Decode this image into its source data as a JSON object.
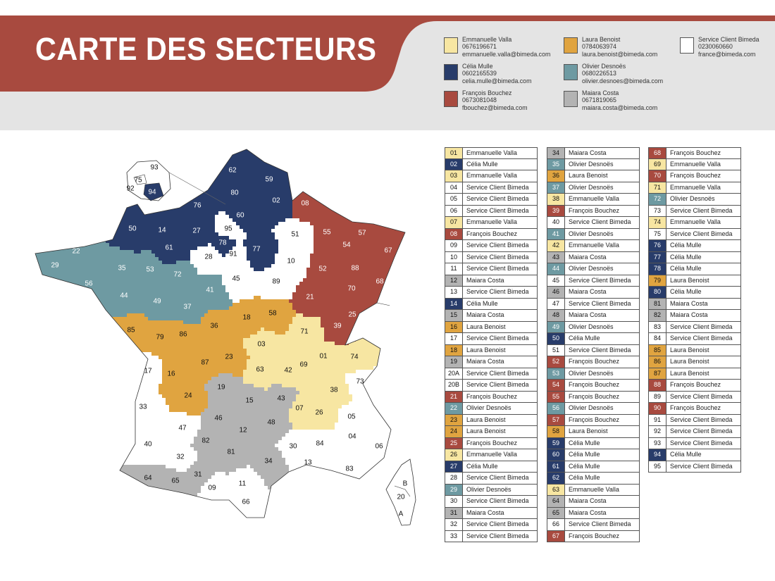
{
  "title": "CARTE DES SECTEURS",
  "colors": {
    "banner": "#a84a3f",
    "header_gray": "#e4e4e4",
    "emmanuelle": "#f7e6a2",
    "celia": "#283c6a",
    "francois": "#a84a3f",
    "laura": "#e0a440",
    "olivier": "#6e9aa2",
    "maiara": "#b3b3b3",
    "service": "#ffffff"
  },
  "contacts": [
    {
      "color_key": "emmanuelle",
      "name": "Emmanuelle Valla",
      "phone": "0676196671",
      "email": "emmanuelle.valla@bimeda.com"
    },
    {
      "color_key": "celia",
      "name": "Célia Mulle",
      "phone": "0602165539",
      "email": "celia.mulle@bimeda.com"
    },
    {
      "color_key": "francois",
      "name": "François Bouchez",
      "phone": "0673081048",
      "email": "fbouchez@bimeda.com"
    },
    {
      "color_key": "laura",
      "name": "Laura Benoist",
      "phone": "0784063974",
      "email": "laura.benoist@bimeda.com"
    },
    {
      "color_key": "olivier",
      "name": "Olivier Desnoës",
      "phone": "0680226513",
      "email": "olivier.desnoes@bimeda.com"
    },
    {
      "color_key": "maiara",
      "name": "Maiara Costa",
      "phone": "0671819065",
      "email": "maiara.costa@bimeda.com"
    },
    {
      "color_key": "service",
      "name": "Service Client Bimeda",
      "phone": "0230060660",
      "email": "france@bimeda.com"
    }
  ],
  "departments": [
    {
      "code": "01",
      "owner": "Emmanuelle Valla",
      "color_key": "emmanuelle"
    },
    {
      "code": "02",
      "owner": "Célia Mulle",
      "color_key": "celia"
    },
    {
      "code": "03",
      "owner": "Emmanuelle Valla",
      "color_key": "emmanuelle"
    },
    {
      "code": "04",
      "owner": "Service Client Bimeda",
      "color_key": "service"
    },
    {
      "code": "05",
      "owner": "Service Client Bimeda",
      "color_key": "service"
    },
    {
      "code": "06",
      "owner": "Service Client Bimeda",
      "color_key": "service"
    },
    {
      "code": "07",
      "owner": "Emmanuelle Valla",
      "color_key": "emmanuelle"
    },
    {
      "code": "08",
      "owner": "François Bouchez",
      "color_key": "francois"
    },
    {
      "code": "09",
      "owner": "Service Client Bimeda",
      "color_key": "service"
    },
    {
      "code": "10",
      "owner": "Service Client Bimeda",
      "color_key": "service"
    },
    {
      "code": "11",
      "owner": "Service Client Bimeda",
      "color_key": "service"
    },
    {
      "code": "12",
      "owner": "Maiara Costa",
      "color_key": "maiara"
    },
    {
      "code": "13",
      "owner": "Service Client Bimeda",
      "color_key": "service"
    },
    {
      "code": "14",
      "owner": "Célia Mulle",
      "color_key": "celia"
    },
    {
      "code": "15",
      "owner": "Maiara Costa",
      "color_key": "maiara"
    },
    {
      "code": "16",
      "owner": "Laura Benoist",
      "color_key": "laura"
    },
    {
      "code": "17",
      "owner": "Service Client Bimeda",
      "color_key": "service"
    },
    {
      "code": "18",
      "owner": "Laura Benoist",
      "color_key": "laura"
    },
    {
      "code": "19",
      "owner": "Maiara Costa",
      "color_key": "maiara"
    },
    {
      "code": "20A",
      "owner": "Service Client Bimeda",
      "color_key": "service"
    },
    {
      "code": "20B",
      "owner": "Service Client Bimeda",
      "color_key": "service"
    },
    {
      "code": "21",
      "owner": "François Bouchez",
      "color_key": "francois"
    },
    {
      "code": "22",
      "owner": "Olivier Desnoës",
      "color_key": "olivier"
    },
    {
      "code": "23",
      "owner": "Laura Benoist",
      "color_key": "laura"
    },
    {
      "code": "24",
      "owner": "Laura Benoist",
      "color_key": "laura"
    },
    {
      "code": "25",
      "owner": "François Bouchez",
      "color_key": "francois"
    },
    {
      "code": "26",
      "owner": "Emmanuelle Valla",
      "color_key": "emmanuelle"
    },
    {
      "code": "27",
      "owner": "Célia Mulle",
      "color_key": "celia"
    },
    {
      "code": "28",
      "owner": "Service Client Bimeda",
      "color_key": "service"
    },
    {
      "code": "29",
      "owner": "Olivier Desnoës",
      "color_key": "olivier"
    },
    {
      "code": "30",
      "owner": "Service Client Bimeda",
      "color_key": "service"
    },
    {
      "code": "31",
      "owner": "Maiara Costa",
      "color_key": "maiara"
    },
    {
      "code": "32",
      "owner": "Service Client Bimeda",
      "color_key": "service"
    },
    {
      "code": "33",
      "owner": "Service Client Bimeda",
      "color_key": "service"
    },
    {
      "code": "34",
      "owner": "Maiara Costa",
      "color_key": "maiara"
    },
    {
      "code": "35",
      "owner": "Olivier Desnoës",
      "color_key": "olivier"
    },
    {
      "code": "36",
      "owner": "Laura Benoist",
      "color_key": "laura"
    },
    {
      "code": "37",
      "owner": "Olivier Desnoës",
      "color_key": "olivier"
    },
    {
      "code": "38",
      "owner": "Emmanuelle Valla",
      "color_key": "emmanuelle"
    },
    {
      "code": "39",
      "owner": "François Bouchez",
      "color_key": "francois"
    },
    {
      "code": "40",
      "owner": "Service Client Bimeda",
      "color_key": "service"
    },
    {
      "code": "41",
      "owner": "Olivier Desnoës",
      "color_key": "olivier"
    },
    {
      "code": "42",
      "owner": "Emmanuelle Valla",
      "color_key": "emmanuelle"
    },
    {
      "code": "43",
      "owner": "Maiara Costa",
      "color_key": "maiara"
    },
    {
      "code": "44",
      "owner": "Olivier Desnoës",
      "color_key": "olivier"
    },
    {
      "code": "45",
      "owner": "Service Client Bimeda",
      "color_key": "service"
    },
    {
      "code": "46",
      "owner": "Maiara Costa",
      "color_key": "maiara"
    },
    {
      "code": "47",
      "owner": "Service Client Bimeda",
      "color_key": "service"
    },
    {
      "code": "48",
      "owner": "Maiara Costa",
      "color_key": "maiara"
    },
    {
      "code": "49",
      "owner": "Olivier Desnoës",
      "color_key": "olivier"
    },
    {
      "code": "50",
      "owner": "Célia Mulle",
      "color_key": "celia"
    },
    {
      "code": "51",
      "owner": "Service Client Bimeda",
      "color_key": "service"
    },
    {
      "code": "52",
      "owner": "François Bouchez",
      "color_key": "francois"
    },
    {
      "code": "53",
      "owner": "Olivier Desnoës",
      "color_key": "olivier"
    },
    {
      "code": "54",
      "owner": "François Bouchez",
      "color_key": "francois"
    },
    {
      "code": "55",
      "owner": "François Bouchez",
      "color_key": "francois"
    },
    {
      "code": "56",
      "owner": "Olivier Desnoës",
      "color_key": "olivier"
    },
    {
      "code": "57",
      "owner": "François Bouchez",
      "color_key": "francois"
    },
    {
      "code": "58",
      "owner": "Laura Benoist",
      "color_key": "laura"
    },
    {
      "code": "59",
      "owner": "Célia Mulle",
      "color_key": "celia"
    },
    {
      "code": "60",
      "owner": "Célia Mulle",
      "color_key": "celia"
    },
    {
      "code": "61",
      "owner": "Célia Mulle",
      "color_key": "celia"
    },
    {
      "code": "62",
      "owner": "Célia Mulle",
      "color_key": "celia"
    },
    {
      "code": "63",
      "owner": "Emmanuelle Valla",
      "color_key": "emmanuelle"
    },
    {
      "code": "64",
      "owner": "Maiara Costa",
      "color_key": "maiara"
    },
    {
      "code": "65",
      "owner": "Maiara Costa",
      "color_key": "maiara"
    },
    {
      "code": "66",
      "owner": "Service Client Bimeda",
      "color_key": "service"
    },
    {
      "code": "67",
      "owner": "François Bouchez",
      "color_key": "francois"
    },
    {
      "code": "68",
      "owner": "François Bouchez",
      "color_key": "francois"
    },
    {
      "code": "69",
      "owner": "Emmanuelle Valla",
      "color_key": "emmanuelle"
    },
    {
      "code": "70",
      "owner": "François Bouchez",
      "color_key": "francois"
    },
    {
      "code": "71",
      "owner": "Emmanuelle Valla",
      "color_key": "emmanuelle"
    },
    {
      "code": "72",
      "owner": "Olivier Desnoës",
      "color_key": "olivier"
    },
    {
      "code": "73",
      "owner": "Service Client Bimeda",
      "color_key": "service"
    },
    {
      "code": "74",
      "owner": "Emmanuelle Valla",
      "color_key": "emmanuelle"
    },
    {
      "code": "75",
      "owner": "Service Client Bimeda",
      "color_key": "service"
    },
    {
      "code": "76",
      "owner": "Célia Mulle",
      "color_key": "celia"
    },
    {
      "code": "77",
      "owner": "Célia Mulle",
      "color_key": "celia"
    },
    {
      "code": "78",
      "owner": "Célia Mulle",
      "color_key": "celia"
    },
    {
      "code": "79",
      "owner": "Laura Benoist",
      "color_key": "laura"
    },
    {
      "code": "80",
      "owner": "Célia Mulle",
      "color_key": "celia"
    },
    {
      "code": "81",
      "owner": "Maiara Costa",
      "color_key": "maiara"
    },
    {
      "code": "82",
      "owner": "Maiara Costa",
      "color_key": "maiara"
    },
    {
      "code": "83",
      "owner": "Service Client Bimeda",
      "color_key": "service"
    },
    {
      "code": "84",
      "owner": "Service Client Bimeda",
      "color_key": "service"
    },
    {
      "code": "85",
      "owner": "Laura Benoist",
      "color_key": "laura"
    },
    {
      "code": "86",
      "owner": "Laura Benoist",
      "color_key": "laura"
    },
    {
      "code": "87",
      "owner": "Laura Benoist",
      "color_key": "laura"
    },
    {
      "code": "88",
      "owner": "François Bouchez",
      "color_key": "francois"
    },
    {
      "code": "89",
      "owner": "Service Client Bimeda",
      "color_key": "service"
    },
    {
      "code": "90",
      "owner": "François Bouchez",
      "color_key": "francois"
    },
    {
      "code": "91",
      "owner": "Service Client Bimeda",
      "color_key": "service"
    },
    {
      "code": "92",
      "owner": "Service Client Bimeda",
      "color_key": "service"
    },
    {
      "code": "93",
      "owner": "Service Client Bimeda",
      "color_key": "service"
    },
    {
      "code": "94",
      "owner": "Célia Mulle",
      "color_key": "celia"
    },
    {
      "code": "95",
      "owner": "Service Client Bimeda",
      "color_key": "service"
    }
  ],
  "corsica_labels": [
    "B",
    "20",
    "A"
  ]
}
